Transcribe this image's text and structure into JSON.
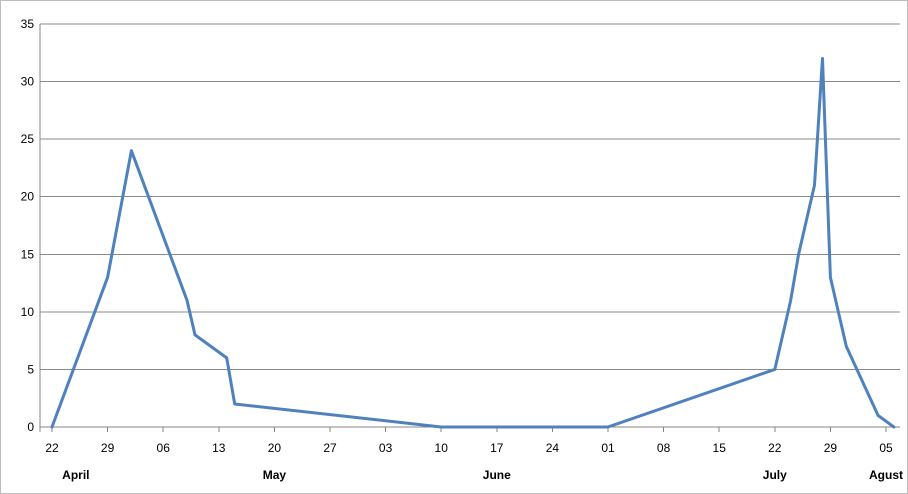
{
  "chart_data": {
    "type": "line",
    "title": "",
    "xlabel": "",
    "ylabel": "",
    "ylim": [
      0,
      35
    ],
    "y_ticks": [
      "0",
      "5",
      "10",
      "15",
      "20",
      "25",
      "30",
      "35"
    ],
    "x_range": [
      "2013-04-22",
      "2013-08-08"
    ],
    "x_ticks": [
      {
        "date": "2013-04-22",
        "label": "22"
      },
      {
        "date": "2013-04-29",
        "label": "29"
      },
      {
        "date": "2013-05-06",
        "label": "06"
      },
      {
        "date": "2013-05-13",
        "label": "13"
      },
      {
        "date": "2013-05-20",
        "label": "20"
      },
      {
        "date": "2013-05-27",
        "label": "27"
      },
      {
        "date": "2013-06-03",
        "label": "03"
      },
      {
        "date": "2013-06-10",
        "label": "10"
      },
      {
        "date": "2013-06-17",
        "label": "17"
      },
      {
        "date": "2013-06-24",
        "label": "24"
      },
      {
        "date": "2013-07-01",
        "label": "01"
      },
      {
        "date": "2013-07-08",
        "label": "08"
      },
      {
        "date": "2013-07-15",
        "label": "15"
      },
      {
        "date": "2013-07-22",
        "label": "22"
      },
      {
        "date": "2013-07-29",
        "label": "29"
      },
      {
        "date": "2013-08-05",
        "label": "05"
      }
    ],
    "month_labels": [
      {
        "date": "2013-04-25",
        "label": "April"
      },
      {
        "date": "2013-05-20",
        "label": "May"
      },
      {
        "date": "2013-06-17",
        "label": "June"
      },
      {
        "date": "2013-07-22",
        "label": "July"
      },
      {
        "date": "2013-08-05",
        "label": "Agust"
      }
    ],
    "grid": true,
    "legend": "none",
    "series": [
      {
        "color": "#4f81bd",
        "points": [
          {
            "x": "2013-04-22",
            "y": 0
          },
          {
            "x": "2013-04-29",
            "y": 13
          },
          {
            "x": "2013-05-02",
            "y": 24
          },
          {
            "x": "2013-05-09",
            "y": 11
          },
          {
            "x": "2013-05-10",
            "y": 8
          },
          {
            "x": "2013-05-14",
            "y": 6
          },
          {
            "x": "2013-05-15",
            "y": 2
          },
          {
            "x": "2013-06-10",
            "y": 0
          },
          {
            "x": "2013-07-01",
            "y": 0
          },
          {
            "x": "2013-07-22",
            "y": 5
          },
          {
            "x": "2013-07-24",
            "y": 11
          },
          {
            "x": "2013-07-25",
            "y": 15
          },
          {
            "x": "2013-07-27",
            "y": 21
          },
          {
            "x": "2013-07-28",
            "y": 32
          },
          {
            "x": "2013-07-29",
            "y": 13
          },
          {
            "x": "2013-07-31",
            "y": 7
          },
          {
            "x": "2013-08-04",
            "y": 1
          },
          {
            "x": "2013-08-06",
            "y": 0
          }
        ]
      }
    ]
  }
}
